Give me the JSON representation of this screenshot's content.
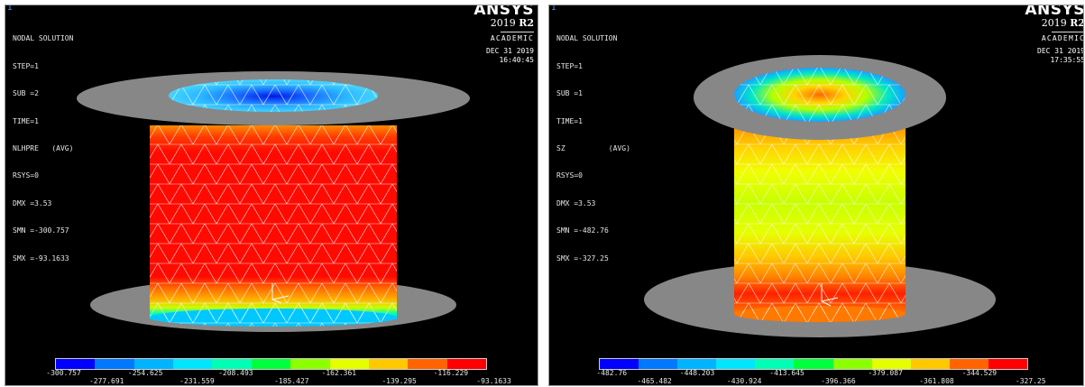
{
  "left": {
    "window_number": "1",
    "header": "NODAL SOLUTION",
    "info_lines": [
      "STEP=1",
      "SUB =2",
      "TIME=1",
      "NLHPRE   (AVG)",
      "RSYS=0",
      "DMX =3.53",
      "SMN =-300.757",
      "SMX =-93.1633"
    ],
    "brand": {
      "logo": "ANSYS",
      "version": "2019",
      "release": "R2",
      "academic": "ACADEMIC",
      "date": "DEC 31 2019",
      "time": "16:40:45"
    },
    "legend_top": [
      "-300.757",
      "-254.625",
      "-208.493",
      "-162.361",
      "-116.229"
    ],
    "legend_bottom": [
      "-277.691",
      "-231.559",
      "-185.427",
      "-139.295",
      "-93.1633"
    ]
  },
  "right": {
    "window_number": "1",
    "header": "NODAL SOLUTION",
    "info_lines": [
      "STEP=1",
      "SUB =1",
      "TIME=1",
      "SZ          (AVG)",
      "RSYS=0",
      "DMX =3.53",
      "SMN =-482.76",
      "SMX =-327.25"
    ],
    "brand": {
      "logo": "ANSYS",
      "version": "2019",
      "release": "R2",
      "academic": "ACADEMIC",
      "date": "DEC 31 2019",
      "time": "17:35:55"
    },
    "legend_top": [
      "-482.76",
      "-448.203",
      "-413.645",
      "-379.087",
      "-344.529"
    ],
    "legend_bottom": [
      "-465.482",
      "-430.924",
      "-396.366",
      "-361.808",
      "-327.25"
    ]
  },
  "colormap": [
    "#0000ff",
    "#0078ff",
    "#00b4ff",
    "#00e6ff",
    "#00ffb4",
    "#00ff3c",
    "#8cff00",
    "#e6ff00",
    "#ffc800",
    "#ff6400",
    "#ff0000"
  ]
}
